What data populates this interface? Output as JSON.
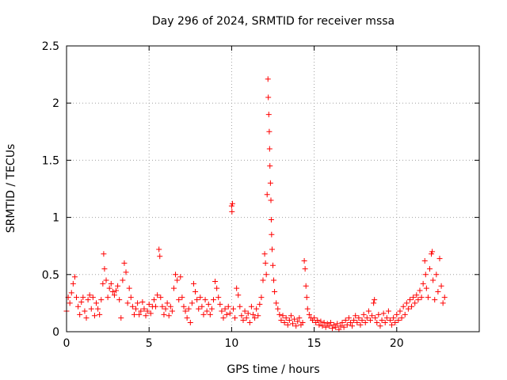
{
  "chart_data": {
    "type": "scatter",
    "title": "Day 296 of 2024, SRMTID for receiver mssa",
    "xlabel": "GPS time / hours",
    "ylabel": "SRMTID / TECUs",
    "xlim": [
      0,
      25
    ],
    "ylim": [
      0,
      2.5
    ],
    "xticks": [
      0,
      5,
      10,
      15,
      20
    ],
    "xtick_labels": [
      "0",
      "5",
      "10",
      "15",
      "20"
    ],
    "yticks": [
      0,
      0.5,
      1,
      1.5,
      2,
      2.5
    ],
    "ytick_labels": [
      "0",
      "0.5",
      "1",
      "1.5",
      "2",
      "2.5"
    ],
    "grid": true,
    "marker": "+",
    "series": [
      {
        "name": "SRMTID",
        "color": "#ff0000",
        "points": [
          [
            0.0,
            0.18
          ],
          [
            0.1,
            0.3
          ],
          [
            0.2,
            0.25
          ],
          [
            0.3,
            0.34
          ],
          [
            0.4,
            0.42
          ],
          [
            0.5,
            0.48
          ],
          [
            0.6,
            0.3
          ],
          [
            0.7,
            0.22
          ],
          [
            0.8,
            0.15
          ],
          [
            0.9,
            0.26
          ],
          [
            1.0,
            0.3
          ],
          [
            1.1,
            0.18
          ],
          [
            1.2,
            0.12
          ],
          [
            1.3,
            0.28
          ],
          [
            1.4,
            0.32
          ],
          [
            1.5,
            0.2
          ],
          [
            1.6,
            0.3
          ],
          [
            1.7,
            0.14
          ],
          [
            1.8,
            0.25
          ],
          [
            1.9,
            0.2
          ],
          [
            2.0,
            0.15
          ],
          [
            2.1,
            0.28
          ],
          [
            2.2,
            0.42
          ],
          [
            2.25,
            0.68
          ],
          [
            2.3,
            0.55
          ],
          [
            2.4,
            0.45
          ],
          [
            2.5,
            0.3
          ],
          [
            2.6,
            0.38
          ],
          [
            2.7,
            0.42
          ],
          [
            2.8,
            0.35
          ],
          [
            2.9,
            0.32
          ],
          [
            3.0,
            0.36
          ],
          [
            3.1,
            0.4
          ],
          [
            3.2,
            0.28
          ],
          [
            3.3,
            0.12
          ],
          [
            3.4,
            0.45
          ],
          [
            3.5,
            0.6
          ],
          [
            3.6,
            0.52
          ],
          [
            3.7,
            0.25
          ],
          [
            3.8,
            0.38
          ],
          [
            3.9,
            0.3
          ],
          [
            4.0,
            0.22
          ],
          [
            4.1,
            0.15
          ],
          [
            4.2,
            0.2
          ],
          [
            4.3,
            0.25
          ],
          [
            4.4,
            0.15
          ],
          [
            4.5,
            0.18
          ],
          [
            4.6,
            0.26
          ],
          [
            4.7,
            0.2
          ],
          [
            4.8,
            0.14
          ],
          [
            4.9,
            0.18
          ],
          [
            5.0,
            0.24
          ],
          [
            5.1,
            0.16
          ],
          [
            5.2,
            0.22
          ],
          [
            5.3,
            0.28
          ],
          [
            5.4,
            0.22
          ],
          [
            5.5,
            0.32
          ],
          [
            5.6,
            0.72
          ],
          [
            5.65,
            0.66
          ],
          [
            5.7,
            0.3
          ],
          [
            5.8,
            0.22
          ],
          [
            5.9,
            0.15
          ],
          [
            6.0,
            0.2
          ],
          [
            6.1,
            0.25
          ],
          [
            6.2,
            0.14
          ],
          [
            6.3,
            0.22
          ],
          [
            6.4,
            0.18
          ],
          [
            6.5,
            0.38
          ],
          [
            6.6,
            0.5
          ],
          [
            6.7,
            0.45
          ],
          [
            6.8,
            0.28
          ],
          [
            6.9,
            0.48
          ],
          [
            7.0,
            0.3
          ],
          [
            7.1,
            0.22
          ],
          [
            7.2,
            0.18
          ],
          [
            7.3,
            0.12
          ],
          [
            7.4,
            0.2
          ],
          [
            7.5,
            0.08
          ],
          [
            7.6,
            0.25
          ],
          [
            7.7,
            0.42
          ],
          [
            7.8,
            0.35
          ],
          [
            7.9,
            0.28
          ],
          [
            8.0,
            0.2
          ],
          [
            8.1,
            0.3
          ],
          [
            8.2,
            0.22
          ],
          [
            8.3,
            0.15
          ],
          [
            8.4,
            0.28
          ],
          [
            8.5,
            0.18
          ],
          [
            8.6,
            0.24
          ],
          [
            8.7,
            0.15
          ],
          [
            8.8,
            0.2
          ],
          [
            8.9,
            0.28
          ],
          [
            9.0,
            0.44
          ],
          [
            9.1,
            0.38
          ],
          [
            9.2,
            0.3
          ],
          [
            9.3,
            0.24
          ],
          [
            9.4,
            0.18
          ],
          [
            9.5,
            0.12
          ],
          [
            9.6,
            0.2
          ],
          [
            9.7,
            0.15
          ],
          [
            9.8,
            0.22
          ],
          [
            9.9,
            0.16
          ],
          [
            10.0,
            1.1
          ],
          [
            10.02,
            1.05
          ],
          [
            10.05,
            1.12
          ],
          [
            10.1,
            0.2
          ],
          [
            10.2,
            0.12
          ],
          [
            10.3,
            0.38
          ],
          [
            10.4,
            0.32
          ],
          [
            10.5,
            0.22
          ],
          [
            10.6,
            0.14
          ],
          [
            10.7,
            0.1
          ],
          [
            10.8,
            0.18
          ],
          [
            10.9,
            0.12
          ],
          [
            11.0,
            0.16
          ],
          [
            11.1,
            0.08
          ],
          [
            11.2,
            0.22
          ],
          [
            11.3,
            0.15
          ],
          [
            11.4,
            0.12
          ],
          [
            11.5,
            0.2
          ],
          [
            11.6,
            0.14
          ],
          [
            11.7,
            0.24
          ],
          [
            11.8,
            0.3
          ],
          [
            11.9,
            0.45
          ],
          [
            12.0,
            0.68
          ],
          [
            12.05,
            0.6
          ],
          [
            12.1,
            0.5
          ],
          [
            12.15,
            1.2
          ],
          [
            12.2,
            2.21
          ],
          [
            12.22,
            2.05
          ],
          [
            12.25,
            1.9
          ],
          [
            12.28,
            1.75
          ],
          [
            12.3,
            1.6
          ],
          [
            12.32,
            1.45
          ],
          [
            12.35,
            1.3
          ],
          [
            12.38,
            1.15
          ],
          [
            12.4,
            0.98
          ],
          [
            12.42,
            0.85
          ],
          [
            12.45,
            0.72
          ],
          [
            12.5,
            0.58
          ],
          [
            12.55,
            0.45
          ],
          [
            12.6,
            0.35
          ],
          [
            12.7,
            0.25
          ],
          [
            12.8,
            0.2
          ],
          [
            12.9,
            0.15
          ],
          [
            13.0,
            0.1
          ],
          [
            13.1,
            0.14
          ],
          [
            13.2,
            0.08
          ],
          [
            13.3,
            0.12
          ],
          [
            13.4,
            0.06
          ],
          [
            13.5,
            0.1
          ],
          [
            13.6,
            0.14
          ],
          [
            13.7,
            0.07
          ],
          [
            13.8,
            0.11
          ],
          [
            13.9,
            0.05
          ],
          [
            14.0,
            0.09
          ],
          [
            14.1,
            0.12
          ],
          [
            14.2,
            0.06
          ],
          [
            14.3,
            0.08
          ],
          [
            14.4,
            0.62
          ],
          [
            14.45,
            0.55
          ],
          [
            14.5,
            0.4
          ],
          [
            14.55,
            0.3
          ],
          [
            14.6,
            0.2
          ],
          [
            14.7,
            0.15
          ],
          [
            14.8,
            0.12
          ],
          [
            14.9,
            0.1
          ],
          [
            15.0,
            0.12
          ],
          [
            15.1,
            0.08
          ],
          [
            15.2,
            0.1
          ],
          [
            15.3,
            0.06
          ],
          [
            15.4,
            0.09
          ],
          [
            15.5,
            0.05
          ],
          [
            15.6,
            0.08
          ],
          [
            15.7,
            0.04
          ],
          [
            15.8,
            0.07
          ],
          [
            15.9,
            0.05
          ],
          [
            16.0,
            0.08
          ],
          [
            16.1,
            0.03
          ],
          [
            16.2,
            0.06
          ],
          [
            16.3,
            0.04
          ],
          [
            16.4,
            0.07
          ],
          [
            16.5,
            0.02
          ],
          [
            16.6,
            0.05
          ],
          [
            16.7,
            0.08
          ],
          [
            16.8,
            0.04
          ],
          [
            16.9,
            0.1
          ],
          [
            17.0,
            0.06
          ],
          [
            17.1,
            0.12
          ],
          [
            17.2,
            0.08
          ],
          [
            17.3,
            0.05
          ],
          [
            17.4,
            0.1
          ],
          [
            17.5,
            0.14
          ],
          [
            17.6,
            0.08
          ],
          [
            17.7,
            0.12
          ],
          [
            17.8,
            0.06
          ],
          [
            17.9,
            0.1
          ],
          [
            18.0,
            0.15
          ],
          [
            18.1,
            0.08
          ],
          [
            18.2,
            0.12
          ],
          [
            18.3,
            0.18
          ],
          [
            18.4,
            0.1
          ],
          [
            18.5,
            0.14
          ],
          [
            18.6,
            0.25
          ],
          [
            18.65,
            0.28
          ],
          [
            18.7,
            0.12
          ],
          [
            18.8,
            0.08
          ],
          [
            18.9,
            0.15
          ],
          [
            19.0,
            0.05
          ],
          [
            19.1,
            0.1
          ],
          [
            19.2,
            0.16
          ],
          [
            19.3,
            0.08
          ],
          [
            19.4,
            0.12
          ],
          [
            19.5,
            0.18
          ],
          [
            19.6,
            0.1
          ],
          [
            19.7,
            0.06
          ],
          [
            19.8,
            0.12
          ],
          [
            19.9,
            0.08
          ],
          [
            20.0,
            0.15
          ],
          [
            20.1,
            0.1
          ],
          [
            20.2,
            0.18
          ],
          [
            20.3,
            0.12
          ],
          [
            20.4,
            0.22
          ],
          [
            20.5,
            0.15
          ],
          [
            20.6,
            0.25
          ],
          [
            20.7,
            0.2
          ],
          [
            20.8,
            0.28
          ],
          [
            20.9,
            0.22
          ],
          [
            21.0,
            0.3
          ],
          [
            21.1,
            0.25
          ],
          [
            21.2,
            0.32
          ],
          [
            21.3,
            0.28
          ],
          [
            21.4,
            0.36
          ],
          [
            21.5,
            0.3
          ],
          [
            21.6,
            0.42
          ],
          [
            21.7,
            0.62
          ],
          [
            21.75,
            0.5
          ],
          [
            21.8,
            0.38
          ],
          [
            21.9,
            0.3
          ],
          [
            22.0,
            0.55
          ],
          [
            22.1,
            0.68
          ],
          [
            22.15,
            0.7
          ],
          [
            22.2,
            0.45
          ],
          [
            22.3,
            0.28
          ],
          [
            22.4,
            0.5
          ],
          [
            22.5,
            0.35
          ],
          [
            22.6,
            0.64
          ],
          [
            22.7,
            0.4
          ],
          [
            22.8,
            0.25
          ],
          [
            22.9,
            0.3
          ]
        ]
      }
    ]
  }
}
